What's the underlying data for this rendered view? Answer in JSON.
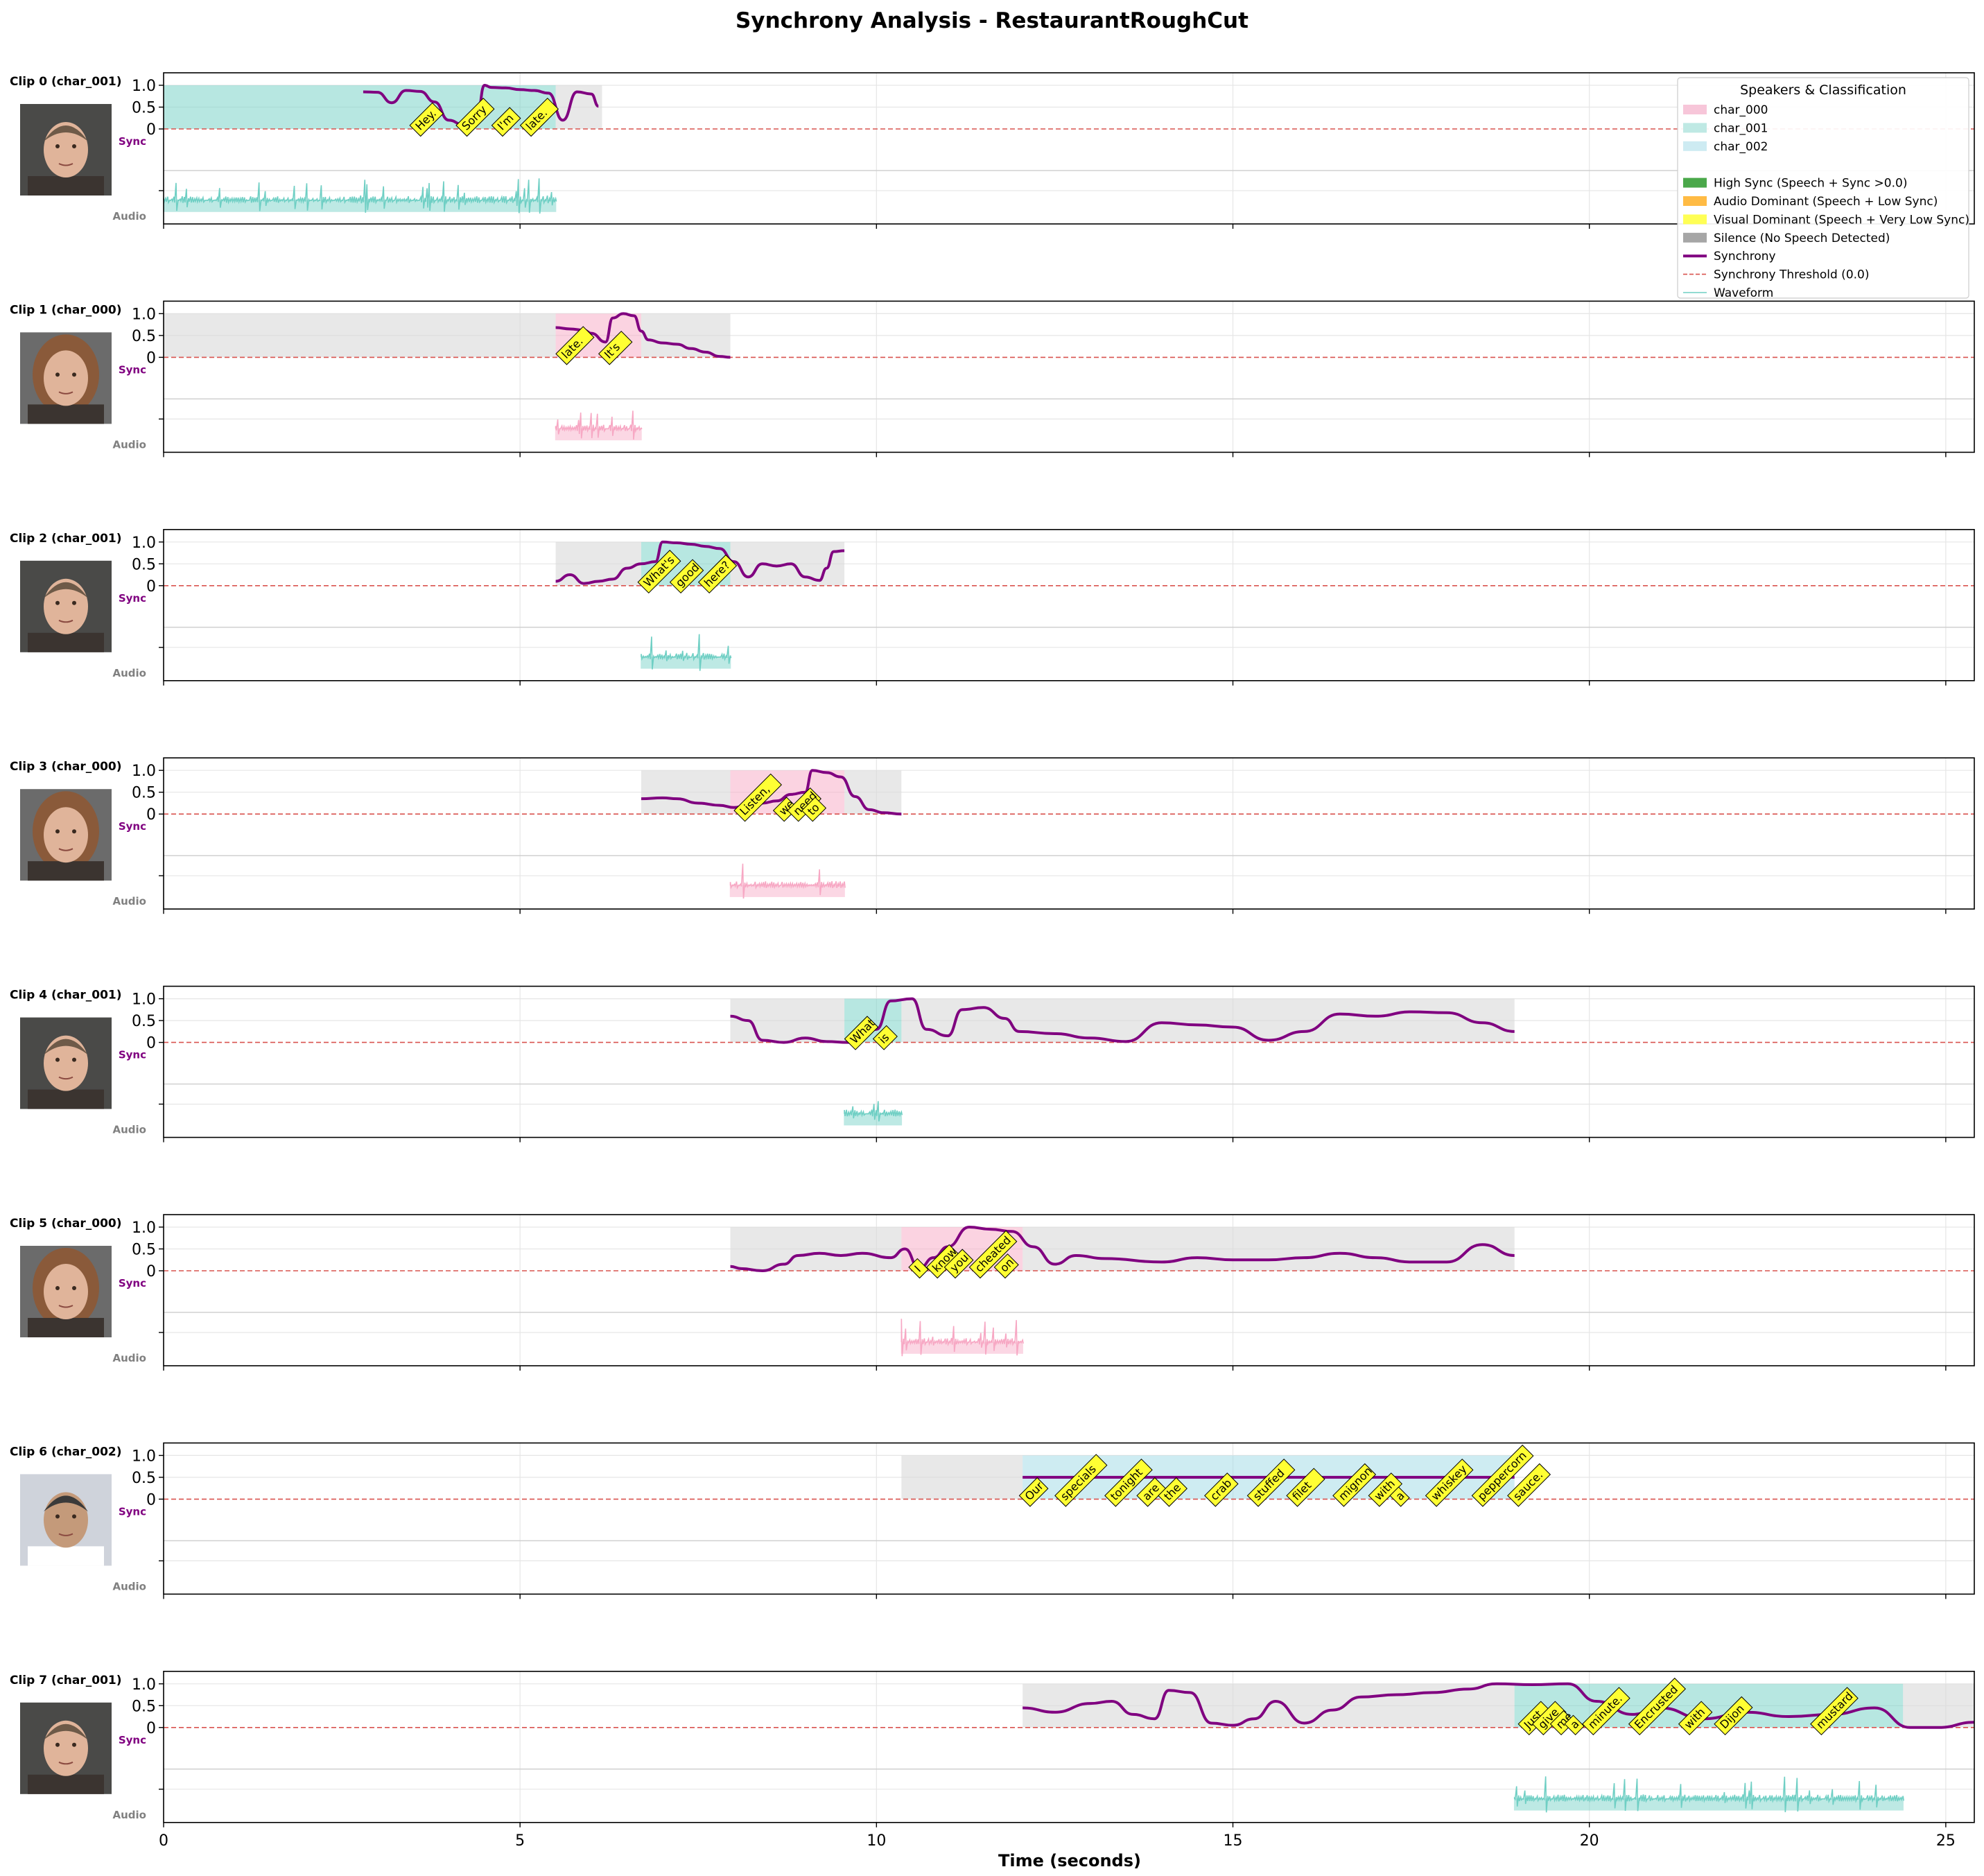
{
  "chart_data": {
    "type": "line",
    "title": "Synchrony Analysis - RestaurantRoughCut",
    "xlabel": "Time (seconds)",
    "xlim": [
      0,
      25.4
    ],
    "ylim": [
      0,
      1.1
    ],
    "x_ticks": [
      "0",
      "5",
      "10",
      "15",
      "20",
      "25"
    ],
    "y_ticks": [
      "0",
      "0.5",
      "1.0"
    ],
    "row_labels": {
      "sync": "Sync",
      "audio": "Audio"
    },
    "grid": true,
    "colors": {
      "char_000": "#f7a8c4",
      "char_001": "#6fcfc4",
      "char_002": "#9ed9e6",
      "silence": "#d9d9d9",
      "synchrony": "#800080",
      "threshold": "#d9534f",
      "word_box": "#ffff33"
    },
    "legend": {
      "title": "Speakers & Classification",
      "position": "top-right",
      "items": [
        {
          "label": "char_000",
          "kind": "patch",
          "color": "#f7c6d9"
        },
        {
          "label": "char_001",
          "kind": "patch",
          "color": "#bfe9e4"
        },
        {
          "label": "char_002",
          "kind": "patch",
          "color": "#cdebf2"
        },
        {
          "label": "",
          "kind": "blank",
          "color": ""
        },
        {
          "label": "High Sync (Speech + Sync >0.0)",
          "kind": "patch",
          "color": "#4aa84a"
        },
        {
          "label": "Audio Dominant (Speech + Low Sync)",
          "kind": "patch",
          "color": "#ffbb44"
        },
        {
          "label": "Visual Dominant (Speech + Very Low Sync)",
          "kind": "patch",
          "color": "#ffff55"
        },
        {
          "label": "Silence (No Speech Detected)",
          "kind": "patch",
          "color": "#a6a6a6"
        },
        {
          "label": "Synchrony",
          "kind": "line",
          "color": "#800080"
        },
        {
          "label": "Synchrony Threshold (0.0)",
          "kind": "dashed",
          "color": "#d9534f"
        },
        {
          "label": "Waveform",
          "kind": "thin",
          "color": "#6fcfc4"
        }
      ]
    },
    "clips": [
      {
        "label": "Clip 0 (char_001)",
        "speaker": "char_001",
        "silence": [
          [
            5.5,
            6.15
          ]
        ],
        "speech": [
          [
            0.0,
            5.5
          ]
        ],
        "audio": [
          0.0,
          5.5
        ],
        "sync_x": [
          2.8,
          3.0,
          3.2,
          3.4,
          3.6,
          3.8,
          4.0,
          4.2,
          4.4,
          4.5,
          4.6,
          4.8,
          5.0,
          5.2,
          5.4,
          5.6,
          5.8,
          6.0,
          6.1
        ],
        "sync_y": [
          0.85,
          0.84,
          0.6,
          0.88,
          0.86,
          0.62,
          0.2,
          0.1,
          0.3,
          1.0,
          0.95,
          0.94,
          0.9,
          0.88,
          0.82,
          0.2,
          0.85,
          0.8,
          0.52
        ],
        "words": [
          {
            "t": 3.55,
            "text": "Hey."
          },
          {
            "t": 4.2,
            "text": "Sorry"
          },
          {
            "t": 4.7,
            "text": "I'm"
          },
          {
            "t": 5.1,
            "text": "late."
          }
        ]
      },
      {
        "label": "Clip 1 (char_000)",
        "speaker": "char_000",
        "silence": [
          [
            0.0,
            5.5
          ],
          [
            6.7,
            7.95
          ]
        ],
        "speech": [
          [
            5.5,
            6.7
          ]
        ],
        "audio": [
          5.5,
          6.7
        ],
        "sync_x": [
          5.5,
          5.7,
          5.9,
          6.0,
          6.2,
          6.3,
          6.45,
          6.6,
          6.7,
          6.8,
          7.0,
          7.2,
          7.4,
          7.6,
          7.8,
          7.95
        ],
        "sync_y": [
          0.68,
          0.65,
          0.62,
          0.55,
          0.35,
          0.9,
          1.0,
          0.95,
          0.6,
          0.4,
          0.33,
          0.3,
          0.2,
          0.12,
          0.02,
          0.0
        ],
        "words": [
          {
            "t": 5.6,
            "text": "late."
          },
          {
            "t": 6.2,
            "text": "It's"
          }
        ]
      },
      {
        "label": "Clip 2 (char_001)",
        "speaker": "char_001",
        "silence": [
          [
            5.5,
            6.7
          ],
          [
            7.95,
            9.55
          ]
        ],
        "speech": [
          [
            6.7,
            7.95
          ]
        ],
        "audio": [
          6.7,
          7.95
        ],
        "sync_x": [
          5.5,
          5.7,
          5.9,
          6.1,
          6.3,
          6.5,
          6.7,
          6.9,
          7.0,
          7.2,
          7.4,
          7.6,
          7.8,
          8.0,
          8.2,
          8.4,
          8.6,
          8.8,
          9.0,
          9.2,
          9.3,
          9.4,
          9.55
        ],
        "sync_y": [
          0.1,
          0.25,
          0.05,
          0.1,
          0.15,
          0.4,
          0.5,
          0.55,
          1.0,
          0.98,
          0.95,
          0.9,
          0.85,
          0.55,
          0.2,
          0.5,
          0.45,
          0.5,
          0.2,
          0.12,
          0.4,
          0.78,
          0.8
        ],
        "words": [
          {
            "t": 6.75,
            "text": "What's"
          },
          {
            "t": 7.2,
            "text": "good"
          },
          {
            "t": 7.6,
            "text": "here?"
          }
        ]
      },
      {
        "label": "Clip 3 (char_000)",
        "speaker": "char_000",
        "silence": [
          [
            6.7,
            7.95
          ],
          [
            9.55,
            10.35
          ]
        ],
        "speech": [
          [
            7.95,
            9.55
          ]
        ],
        "audio": [
          7.95,
          9.55
        ],
        "sync_x": [
          6.7,
          7.0,
          7.2,
          7.5,
          7.8,
          8.0,
          8.2,
          8.4,
          8.6,
          8.8,
          9.0,
          9.1,
          9.3,
          9.5,
          9.7,
          9.9,
          10.1,
          10.35
        ],
        "sync_y": [
          0.35,
          0.37,
          0.35,
          0.25,
          0.2,
          0.15,
          0.2,
          0.25,
          0.3,
          0.45,
          0.5,
          1.0,
          0.95,
          0.85,
          0.4,
          0.1,
          0.03,
          0.0
        ],
        "words": [
          {
            "t": 8.1,
            "text": "Listen,"
          },
          {
            "t": 8.65,
            "text": "we"
          },
          {
            "t": 8.85,
            "text": "need"
          },
          {
            "t": 9.05,
            "text": "to"
          }
        ]
      },
      {
        "label": "Clip 4 (char_001)",
        "speaker": "char_001",
        "silence": [
          [
            7.95,
            9.55
          ],
          [
            10.35,
            18.95
          ]
        ],
        "speech": [
          [
            9.55,
            10.35
          ]
        ],
        "audio": [
          9.55,
          10.35
        ],
        "sync_x": [
          7.95,
          8.2,
          8.4,
          8.7,
          9.0,
          9.3,
          9.6,
          9.8,
          10.0,
          10.2,
          10.5,
          10.7,
          11.0,
          11.2,
          11.5,
          11.8,
          12.0,
          12.5,
          13.0,
          13.5,
          14.0,
          14.5,
          15.0,
          15.5,
          16.0,
          16.5,
          17.0,
          17.5,
          18.0,
          18.5,
          18.95
        ],
        "sync_y": [
          0.6,
          0.5,
          0.05,
          0.0,
          0.1,
          0.02,
          0.0,
          0.1,
          0.3,
          0.95,
          1.0,
          0.3,
          0.15,
          0.75,
          0.8,
          0.55,
          0.25,
          0.2,
          0.1,
          0.02,
          0.45,
          0.4,
          0.35,
          0.05,
          0.25,
          0.65,
          0.6,
          0.7,
          0.68,
          0.45,
          0.25
        ],
        "words": [
          {
            "t": 9.65,
            "text": "What"
          },
          {
            "t": 10.05,
            "text": "is"
          }
        ]
      },
      {
        "label": "Clip 5 (char_000)",
        "speaker": "char_000",
        "silence": [
          [
            7.95,
            10.35
          ],
          [
            12.05,
            18.95
          ]
        ],
        "speech": [
          [
            10.35,
            12.05
          ]
        ],
        "audio": [
          10.35,
          12.05
        ],
        "sync_x": [
          7.95,
          8.1,
          8.4,
          8.7,
          8.9,
          9.2,
          9.5,
          9.8,
          10.2,
          10.4,
          10.6,
          10.8,
          11.0,
          11.3,
          11.6,
          11.9,
          12.2,
          12.5,
          12.8,
          13.2,
          14.0,
          14.5,
          15.0,
          15.5,
          16.0,
          16.5,
          17.0,
          17.5,
          18.0,
          18.5,
          18.95
        ],
        "sync_y": [
          0.1,
          0.05,
          0.0,
          0.15,
          0.35,
          0.4,
          0.35,
          0.4,
          0.3,
          0.5,
          0.05,
          0.3,
          0.55,
          1.0,
          0.95,
          0.9,
          0.55,
          0.15,
          0.35,
          0.28,
          0.2,
          0.3,
          0.25,
          0.25,
          0.3,
          0.4,
          0.3,
          0.2,
          0.2,
          0.6,
          0.35
        ],
        "words": [
          {
            "t": 10.55,
            "text": "I"
          },
          {
            "t": 10.8,
            "text": "know"
          },
          {
            "t": 11.05,
            "text": "you"
          },
          {
            "t": 11.4,
            "text": "cheated"
          },
          {
            "t": 11.75,
            "text": "on"
          }
        ]
      },
      {
        "label": "Clip 6 (char_002)",
        "speaker": "char_002",
        "silence": [
          [
            10.35,
            12.05
          ]
        ],
        "speech": [
          [
            12.05,
            18.95
          ]
        ],
        "audio": null,
        "sync_x": [
          12.05,
          18.95
        ],
        "sync_y": [
          0.5,
          0.5
        ],
        "words": [
          {
            "t": 12.1,
            "text": "Our"
          },
          {
            "t": 12.6,
            "text": "specials"
          },
          {
            "t": 13.3,
            "text": "tonight"
          },
          {
            "t": 13.75,
            "text": "are"
          },
          {
            "t": 14.05,
            "text": "the"
          },
          {
            "t": 14.7,
            "text": "crab"
          },
          {
            "t": 15.3,
            "text": "stuffed"
          },
          {
            "t": 15.85,
            "text": "filet"
          },
          {
            "t": 16.5,
            "text": "mignon"
          },
          {
            "t": 17.0,
            "text": "with"
          },
          {
            "t": 17.3,
            "text": "a"
          },
          {
            "t": 17.8,
            "text": "whiskey"
          },
          {
            "t": 18.45,
            "text": "peppercorn"
          },
          {
            "t": 18.95,
            "text": "sauce."
          }
        ]
      },
      {
        "label": "Clip 7 (char_001)",
        "speaker": "char_001",
        "silence": [
          [
            12.05,
            18.95
          ],
          [
            24.4,
            25.4
          ]
        ],
        "speech": [
          [
            18.95,
            24.4
          ]
        ],
        "audio": [
          18.95,
          24.4
        ],
        "sync_x": [
          12.05,
          12.5,
          13.0,
          13.3,
          13.6,
          13.9,
          14.1,
          14.4,
          14.7,
          15.0,
          15.3,
          15.6,
          16.0,
          16.4,
          16.8,
          17.3,
          17.8,
          18.3,
          18.7,
          19.2,
          19.7,
          20.1,
          20.6,
          21.0,
          21.6,
          22.2,
          22.8,
          23.4,
          24.0,
          24.5,
          24.9,
          25.4
        ],
        "sync_y": [
          0.45,
          0.35,
          0.55,
          0.6,
          0.3,
          0.2,
          0.85,
          0.8,
          0.1,
          0.05,
          0.2,
          0.6,
          0.1,
          0.4,
          0.7,
          0.75,
          0.8,
          0.88,
          1.0,
          0.98,
          1.0,
          0.6,
          0.3,
          0.45,
          0.2,
          0.35,
          0.25,
          0.3,
          0.45,
          0.0,
          0.0,
          0.12
        ],
        "words": [
          {
            "t": 19.1,
            "text": "Just"
          },
          {
            "t": 19.3,
            "text": "give"
          },
          {
            "t": 19.55,
            "text": "me"
          },
          {
            "t": 19.75,
            "text": "a"
          },
          {
            "t": 20.0,
            "text": "minute."
          },
          {
            "t": 20.65,
            "text": "Encrusted"
          },
          {
            "t": 21.35,
            "text": "with"
          },
          {
            "t": 21.85,
            "text": "Dijon"
          },
          {
            "t": 23.2,
            "text": "mustard"
          }
        ]
      }
    ]
  }
}
